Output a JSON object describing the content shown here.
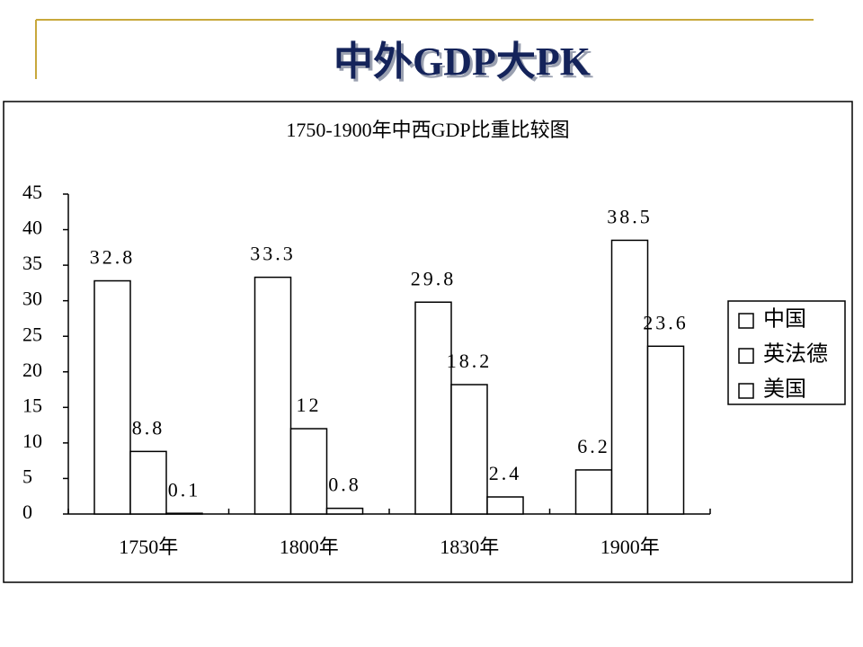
{
  "slide_title": "中外GDP大PK",
  "chart_data": {
    "type": "bar",
    "title": "1750-1900年中西GDP比重比较图",
    "categories": [
      "1750年",
      "1800年",
      "1830年",
      "1900年"
    ],
    "series": [
      {
        "name": "中国",
        "color": "#ffffff",
        "values": [
          32.8,
          33.3,
          29.8,
          6.2
        ]
      },
      {
        "name": "英法德",
        "color": "#ffffff",
        "values": [
          8.8,
          12,
          18.2,
          38.5
        ]
      },
      {
        "name": "美国",
        "color": "#ffffff",
        "values": [
          0.1,
          0.8,
          2.4,
          23.6
        ]
      }
    ],
    "ylim": [
      0,
      45
    ],
    "yticks": [
      0,
      5,
      10,
      15,
      20,
      25,
      30,
      35,
      40,
      45
    ],
    "grid": false,
    "legend": "right"
  }
}
